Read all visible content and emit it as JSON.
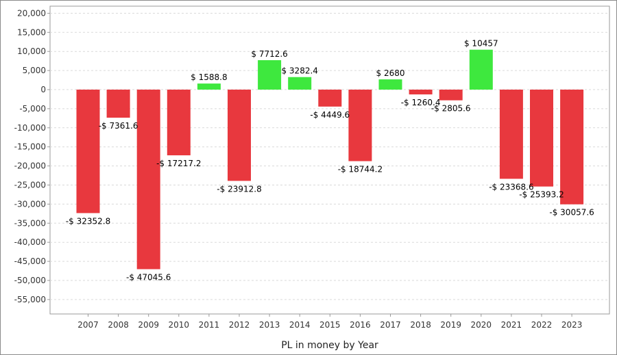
{
  "chart_data": {
    "type": "bar",
    "title": "",
    "xlabel": "PL in money by Year",
    "ylabel": "",
    "ylim": [
      -60000,
      20000
    ],
    "y_ticks": [
      20000,
      15000,
      10000,
      5000,
      0,
      -5000,
      -10000,
      -15000,
      -20000,
      -25000,
      -30000,
      -35000,
      -40000,
      -45000,
      -50000,
      -55000
    ],
    "y_tick_labels": [
      "20,000",
      "15,000",
      "10,000",
      "5,000",
      "0",
      "-5,000",
      "-10,000",
      "-15,000",
      "-20,000",
      "-25,000",
      "-30,000",
      "-35,000",
      "-40,000",
      "-45,000",
      "-50,000",
      "-55,000"
    ],
    "categories": [
      "2007",
      "2008",
      "2009",
      "2010",
      "2011",
      "2012",
      "2013",
      "2014",
      "2015",
      "2016",
      "2017",
      "2018",
      "2019",
      "2020",
      "2021",
      "2022",
      "2023"
    ],
    "values": [
      -32352.8,
      -7361.6,
      -47045.6,
      -17217.2,
      1588.8,
      -23912.8,
      7712.6,
      3282.4,
      -4449.6,
      -18744.2,
      2680,
      -1260.4,
      -2805.6,
      10457,
      -23368.6,
      -25393.2,
      -30057.6
    ],
    "data_labels": [
      "-$ 32352.8",
      "-$ 7361.6",
      "-$ 47045.6",
      "-$ 17217.2",
      "$ 1588.8",
      "-$ 23912.8",
      "$ 7712.6",
      "$ 3282.4",
      "-$ 4449.6",
      "-$ 18744.2",
      "$ 2680",
      "-$ 1260.4",
      "-$ 2805.6",
      "$ 10457",
      "-$ 23368.6",
      "-$ 25393.2",
      "-$ 30057.6"
    ],
    "grid": true,
    "legend": "none",
    "colors": {
      "positive": "#3ee83e",
      "negative": "#e8383e",
      "grid": "#d9d9d9",
      "axis": "#999999"
    }
  }
}
